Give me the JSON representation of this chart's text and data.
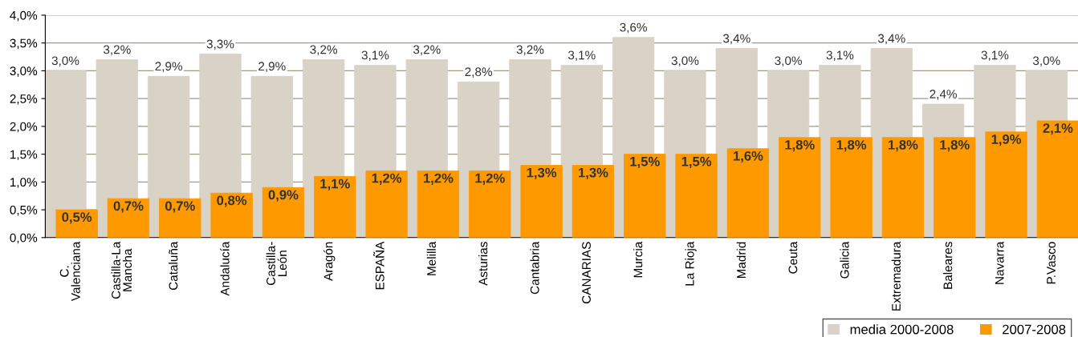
{
  "chart_data": {
    "type": "bar",
    "categories": [
      "C.\nValenciana",
      "Castilla-La\nMancha",
      "Cataluña",
      "Andalucía",
      "Castilla-\nLeón",
      "Aragón",
      "ESPAÑA",
      "Melilla",
      "Asturias",
      "Cantabria",
      "CANARIAS",
      "Murcia",
      "La Rioja",
      "Madrid",
      "Ceuta",
      "Galicia",
      "Extremadura",
      "Baleares",
      "Navarra",
      "P.Vasco"
    ],
    "series": [
      {
        "name": "media 2000-2008",
        "color": "#d8d3c6",
        "values": [
          3.0,
          3.2,
          2.9,
          3.3,
          2.9,
          3.2,
          3.1,
          3.2,
          2.8,
          3.2,
          3.1,
          3.6,
          3.0,
          3.4,
          3.0,
          3.1,
          3.4,
          2.4,
          3.1,
          3.0
        ],
        "value_labels": [
          "3,0%",
          "3,2%",
          "2,9%",
          "3,3%",
          "2,9%",
          "3,2%",
          "3,1%",
          "3,2%",
          "2,8%",
          "3,2%",
          "3,1%",
          "3,6%",
          "3,0%",
          "3,4%",
          "3,0%",
          "3,1%",
          "3,4%",
          "2,4%",
          "3,1%",
          "3,0%"
        ]
      },
      {
        "name": "2007-2008",
        "color": "#ff9900",
        "values": [
          0.5,
          0.7,
          0.7,
          0.8,
          0.9,
          1.1,
          1.2,
          1.2,
          1.2,
          1.3,
          1.3,
          1.5,
          1.5,
          1.6,
          1.8,
          1.8,
          1.8,
          1.8,
          1.9,
          2.1
        ],
        "value_labels": [
          "0,5%",
          "0,7%",
          "0,7%",
          "0,8%",
          "0,9%",
          "1,1%",
          "1,2%",
          "1,2%",
          "1,2%",
          "1,3%",
          "1,3%",
          "1,5%",
          "1,5%",
          "1,6%",
          "1,8%",
          "1,8%",
          "1,8%",
          "1,8%",
          "1,9%",
          "2,1%"
        ]
      }
    ],
    "ylim": [
      0,
      4.0
    ],
    "yticks": [
      {
        "value": 0,
        "label": "0,0%"
      },
      {
        "value": 0.5,
        "label": "0,5%"
      },
      {
        "value": 1.0,
        "label": "1,0%"
      },
      {
        "value": 1.5,
        "label": "1,5%"
      },
      {
        "value": 2.0,
        "label": "2,0%"
      },
      {
        "value": 2.5,
        "label": "2,5%"
      },
      {
        "value": 3.0,
        "label": "3,0%"
      },
      {
        "value": 3.5,
        "label": "3,5%"
      },
      {
        "value": 4.0,
        "label": "4,0%"
      }
    ],
    "grid": "y",
    "legend": "bottom right"
  }
}
